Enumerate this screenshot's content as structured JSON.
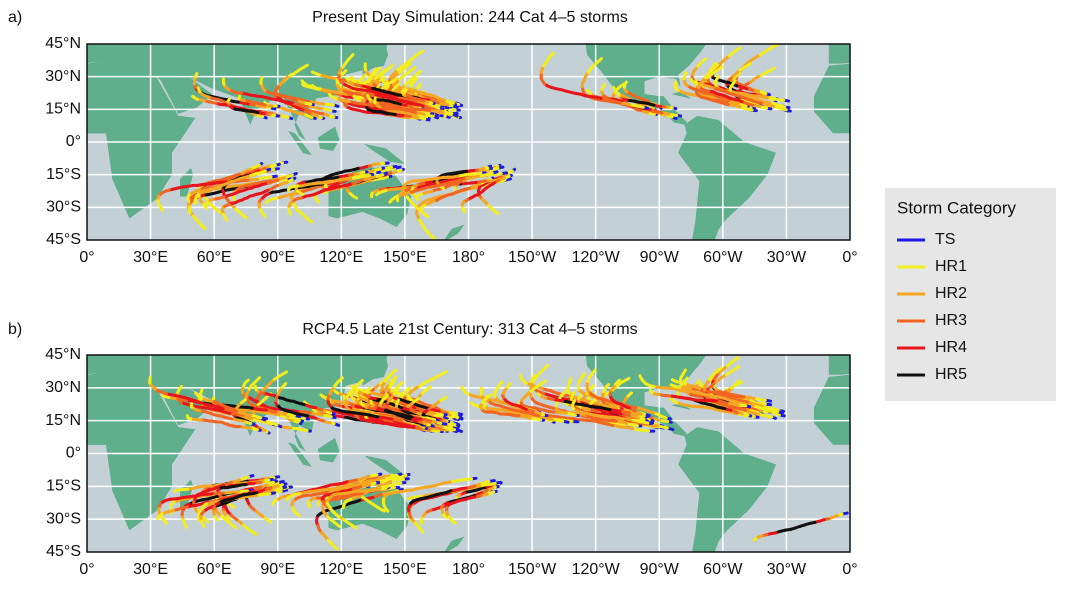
{
  "panels": [
    {
      "label": "a)",
      "title": "Present Day Simulation: 244 Cat 4–5 storms"
    },
    {
      "label": "b)",
      "title": "RCP4.5 Late 21st Century: 313 Cat 4–5 storms"
    }
  ],
  "xticks": [
    "0°",
    "30°E",
    "60°E",
    "90°E",
    "120°E",
    "150°E",
    "180°",
    "150°W",
    "120°W",
    "90°W",
    "60°W",
    "30°W",
    "0°"
  ],
  "yticks": [
    "45°N",
    "30°N",
    "15°N",
    "0°",
    "15°S",
    "30°S",
    "45°S"
  ],
  "legend": {
    "title": "Storm Category",
    "items": [
      {
        "name": "TS",
        "color": "#1a1ae6"
      },
      {
        "name": "HR1",
        "color": "#f2ee1e"
      },
      {
        "name": "HR2",
        "color": "#f5a623"
      },
      {
        "name": "HR3",
        "color": "#f26522"
      },
      {
        "name": "HR4",
        "color": "#e8141c"
      },
      {
        "name": "HR5",
        "color": "#111111"
      }
    ]
  }
}
